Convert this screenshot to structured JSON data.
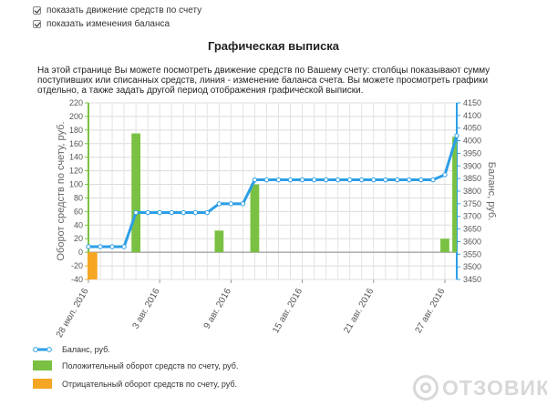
{
  "options": {
    "show_movement": "показать движение средств по счету",
    "show_balance": "показать изменения баланса"
  },
  "title": "Графическая выписка",
  "description": "На этой странице Вы можете посмотреть движение средств по Вашему счету: столбцы показывают сумму поступивших или списанных средств, линия - изменение баланса счета. Вы можете просмотреть графики отдельно, а также задать другой период отображения графической выписки.",
  "legend": {
    "balance": "Баланс, руб.",
    "positive": "Положительный оборот средств по счету, руб.",
    "negative": "Отрицательный оборот средств по счету, руб."
  },
  "brand": "ОТЗОВИК",
  "chart_data": {
    "type": "bar+line",
    "x_tick_labels": [
      "28 июл. 2016",
      "3 авг. 2016",
      "9 авг. 2016",
      "15 авг. 2016",
      "21 авг. 2016",
      "27 авг. 2016"
    ],
    "x_tick_dates": [
      "2016-07-28",
      "2016-08-03",
      "2016-08-09",
      "2016-08-15",
      "2016-08-21",
      "2016-08-27"
    ],
    "xlim": [
      "2016-07-28",
      "2016-08-28"
    ],
    "y_left": {
      "label": "Оборот средств по счету, руб.",
      "lim": [
        -40,
        220
      ],
      "ticks": [
        -40,
        -20,
        0,
        20,
        40,
        60,
        80,
        100,
        120,
        140,
        160,
        180,
        200,
        220
      ]
    },
    "y_right": {
      "label": "Баланс, руб.",
      "lim": [
        3450,
        4150
      ],
      "ticks": [
        3450,
        3500,
        3550,
        3600,
        3650,
        3700,
        3750,
        3800,
        3850,
        3900,
        3950,
        4000,
        4050,
        4100,
        4150
      ]
    },
    "grid": true,
    "bars": [
      {
        "date": "2016-07-28",
        "value": -40,
        "sign": "negative"
      },
      {
        "date": "2016-08-01",
        "value": 175,
        "sign": "positive"
      },
      {
        "date": "2016-08-08",
        "value": 32,
        "sign": "positive"
      },
      {
        "date": "2016-08-11",
        "value": 100,
        "sign": "positive"
      },
      {
        "date": "2016-08-27",
        "value": 20,
        "sign": "positive"
      },
      {
        "date": "2016-08-28",
        "value": 170,
        "sign": "positive"
      }
    ],
    "balance": {
      "dates": [
        "2016-07-28",
        "2016-07-29",
        "2016-07-30",
        "2016-07-31",
        "2016-08-01",
        "2016-08-02",
        "2016-08-03",
        "2016-08-04",
        "2016-08-05",
        "2016-08-06",
        "2016-08-07",
        "2016-08-08",
        "2016-08-09",
        "2016-08-10",
        "2016-08-11",
        "2016-08-12",
        "2016-08-13",
        "2016-08-14",
        "2016-08-15",
        "2016-08-16",
        "2016-08-17",
        "2016-08-18",
        "2016-08-19",
        "2016-08-20",
        "2016-08-21",
        "2016-08-22",
        "2016-08-23",
        "2016-08-24",
        "2016-08-25",
        "2016-08-26",
        "2016-08-27",
        "2016-08-28"
      ],
      "values": [
        3580,
        3580,
        3580,
        3580,
        3715,
        3715,
        3715,
        3715,
        3715,
        3715,
        3715,
        3750,
        3750,
        3750,
        3845,
        3845,
        3845,
        3845,
        3845,
        3845,
        3845,
        3845,
        3845,
        3845,
        3845,
        3845,
        3845,
        3845,
        3845,
        3845,
        3865,
        4020
      ]
    },
    "colors": {
      "positive": "#7ac143",
      "negative": "#f5a623",
      "balance": "#2b9ee6",
      "left_axis": "#f5a623",
      "right_axis": "#2b9ee6"
    }
  }
}
